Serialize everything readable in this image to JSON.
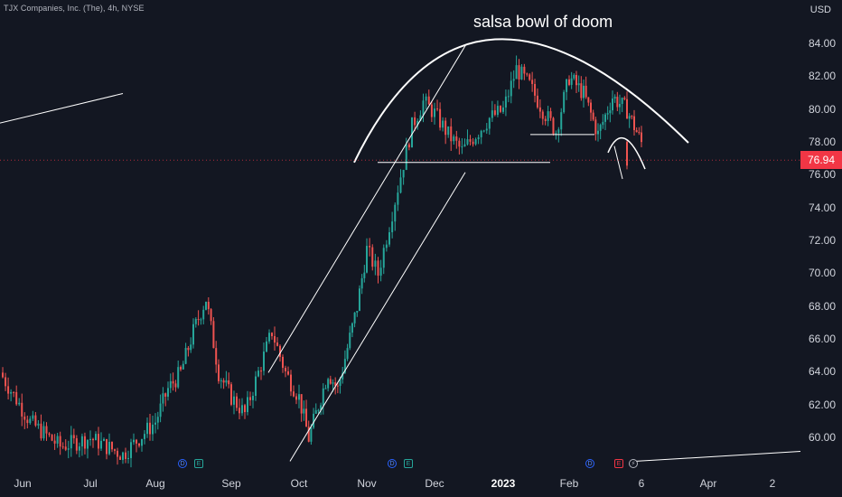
{
  "header": {
    "symbol": "TJX Companies, Inc. (The), 4h, NYSE",
    "currency": "USD"
  },
  "annotation": {
    "text": "salsa bowl of doom"
  },
  "price_tag": {
    "value": "76.94",
    "color": "#f23645"
  },
  "colors": {
    "up": "#26a69a",
    "down": "#ef5350",
    "background": "#131722",
    "drawing": "#ffffff"
  },
  "events": [
    {
      "label": "D",
      "kind": "dividend"
    },
    {
      "label": "E",
      "kind": "earnings"
    },
    {
      "label": "D",
      "kind": "dividend"
    },
    {
      "label": "E",
      "kind": "earnings"
    },
    {
      "label": "D",
      "kind": "dividend"
    },
    {
      "label": "E",
      "kind": "earnings-upcoming"
    },
    {
      "label": "⚡",
      "kind": "split"
    }
  ],
  "chart_data": {
    "type": "candlestick",
    "title": "TJX Companies, Inc. (The), 4h, NYSE",
    "annotation": "salsa bowl of doom",
    "ylabel": "USD",
    "ylim": [
      58.6,
      85.6
    ],
    "y_ticks": [
      "84.00",
      "82.00",
      "80.00",
      "78.00",
      "76.00",
      "74.00",
      "72.00",
      "70.00",
      "68.00",
      "66.00",
      "64.00",
      "62.00",
      "60.00"
    ],
    "x_ticks": [
      "Jun",
      "Jul",
      "Aug",
      "Sep",
      "Oct",
      "Nov",
      "Dec",
      "2023",
      "Feb",
      "6",
      "Apr",
      "2"
    ],
    "last_price": 76.94,
    "anchors": [
      [
        "Jun",
        64.0
      ],
      [
        "Jun",
        61.0
      ],
      [
        "Jun",
        59.5
      ],
      [
        "Jul",
        60.0
      ],
      [
        "Jul",
        59.0
      ],
      [
        "Aug",
        61.0
      ],
      [
        "Aug",
        63.0
      ],
      [
        "Aug",
        64.0
      ],
      [
        "Aug",
        66.5
      ],
      [
        "Aug",
        68.5
      ],
      [
        "Aug",
        64.0
      ],
      [
        "Sep",
        62.5
      ],
      [
        "Sep",
        61.5
      ],
      [
        "Sep",
        64.0
      ],
      [
        "Sep",
        66.5
      ],
      [
        "Sep",
        64.0
      ],
      [
        "Oct",
        62.5
      ],
      [
        "Oct",
        60.0
      ],
      [
        "Oct",
        62.0
      ],
      [
        "Oct",
        64.0
      ],
      [
        "Oct",
        63.0
      ],
      [
        "Oct",
        65.5
      ],
      [
        "Oct",
        68.0
      ],
      [
        "Nov",
        71.5
      ],
      [
        "Nov",
        70.0
      ],
      [
        "Nov",
        73.0
      ],
      [
        "Nov",
        76.0
      ],
      [
        "Nov",
        79.0
      ],
      [
        "Nov",
        80.5
      ],
      [
        "Dec",
        79.8
      ],
      [
        "Dec",
        78.5
      ],
      [
        "Dec",
        77.5
      ],
      [
        "Dec",
        78.5
      ],
      [
        "Dec",
        79.5
      ],
      [
        "2023",
        80.0
      ],
      [
        "2023",
        82.5
      ],
      [
        "2023",
        81.5
      ],
      [
        "2023",
        80.0
      ],
      [
        "2023",
        78.7
      ],
      [
        "Feb",
        82.0
      ],
      [
        "Feb",
        81.0
      ],
      [
        "Feb",
        78.5
      ],
      [
        "Feb",
        80.8
      ],
      [
        "Feb",
        80.0
      ],
      [
        "6",
        78.0
      ],
      [
        "6",
        76.9
      ]
    ],
    "drawings": [
      {
        "type": "arc",
        "name": "rounded-top",
        "from": [
          "Nov",
          76.8
        ],
        "peak": [
          "2023",
          84.3
        ],
        "to": [
          "Apr",
          78.0
        ]
      },
      {
        "type": "channel-upper",
        "from": [
          "Oct",
          64.0
        ],
        "to": [
          "Dec",
          84.0
        ]
      },
      {
        "type": "channel-lower",
        "from": [
          "Oct",
          58.6
        ],
        "to": [
          "Dec",
          76.2
        ]
      },
      {
        "type": "support",
        "from": [
          "Nov",
          76.8
        ],
        "to": [
          "2023",
          76.8
        ]
      },
      {
        "type": "support",
        "from": [
          "2023",
          78.5
        ],
        "to": [
          "Feb",
          78.5
        ]
      },
      {
        "type": "trendline",
        "from": [
          "Jun",
          79.2
        ],
        "to": [
          "Jul",
          81.0
        ]
      },
      {
        "type": "trendline",
        "from": [
          "6",
          58.6
        ],
        "to": [
          "2",
          59.2
        ]
      }
    ]
  }
}
